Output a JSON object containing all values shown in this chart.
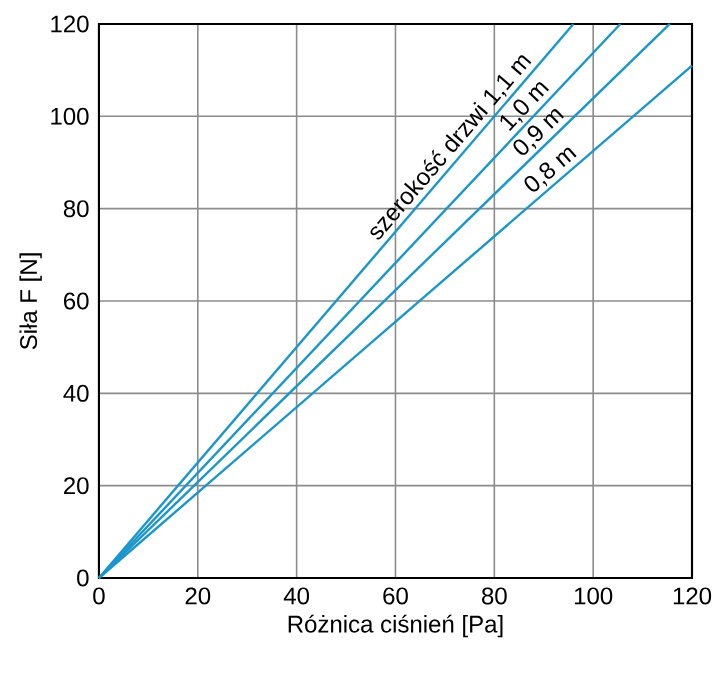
{
  "chart_data": {
    "type": "line",
    "xlabel": "Różnica ciśnień [Pa]",
    "ylabel": "Siła F [N]",
    "xlim": [
      0,
      120
    ],
    "ylim": [
      0,
      120
    ],
    "xticks": [
      0,
      20,
      40,
      60,
      80,
      100,
      120
    ],
    "yticks": [
      0,
      20,
      40,
      60,
      80,
      100,
      120
    ],
    "grid": true,
    "marker": "none",
    "line_style": "solid",
    "series": [
      {
        "name": "szerokość drzwi 1,1 m",
        "color": "#1b96cc",
        "x": [
          0,
          96
        ],
        "values": [
          0,
          120
        ]
      },
      {
        "name": "1,0 m",
        "color": "#1b96cc",
        "x": [
          0,
          105.5
        ],
        "values": [
          0,
          120
        ]
      },
      {
        "name": "0,9 m",
        "color": "#1b96cc",
        "x": [
          0,
          115.5
        ],
        "values": [
          0,
          120
        ]
      },
      {
        "name": "0,8 m",
        "color": "#1b96cc",
        "x": [
          0,
          120
        ],
        "values": [
          0,
          111
        ]
      }
    ]
  }
}
